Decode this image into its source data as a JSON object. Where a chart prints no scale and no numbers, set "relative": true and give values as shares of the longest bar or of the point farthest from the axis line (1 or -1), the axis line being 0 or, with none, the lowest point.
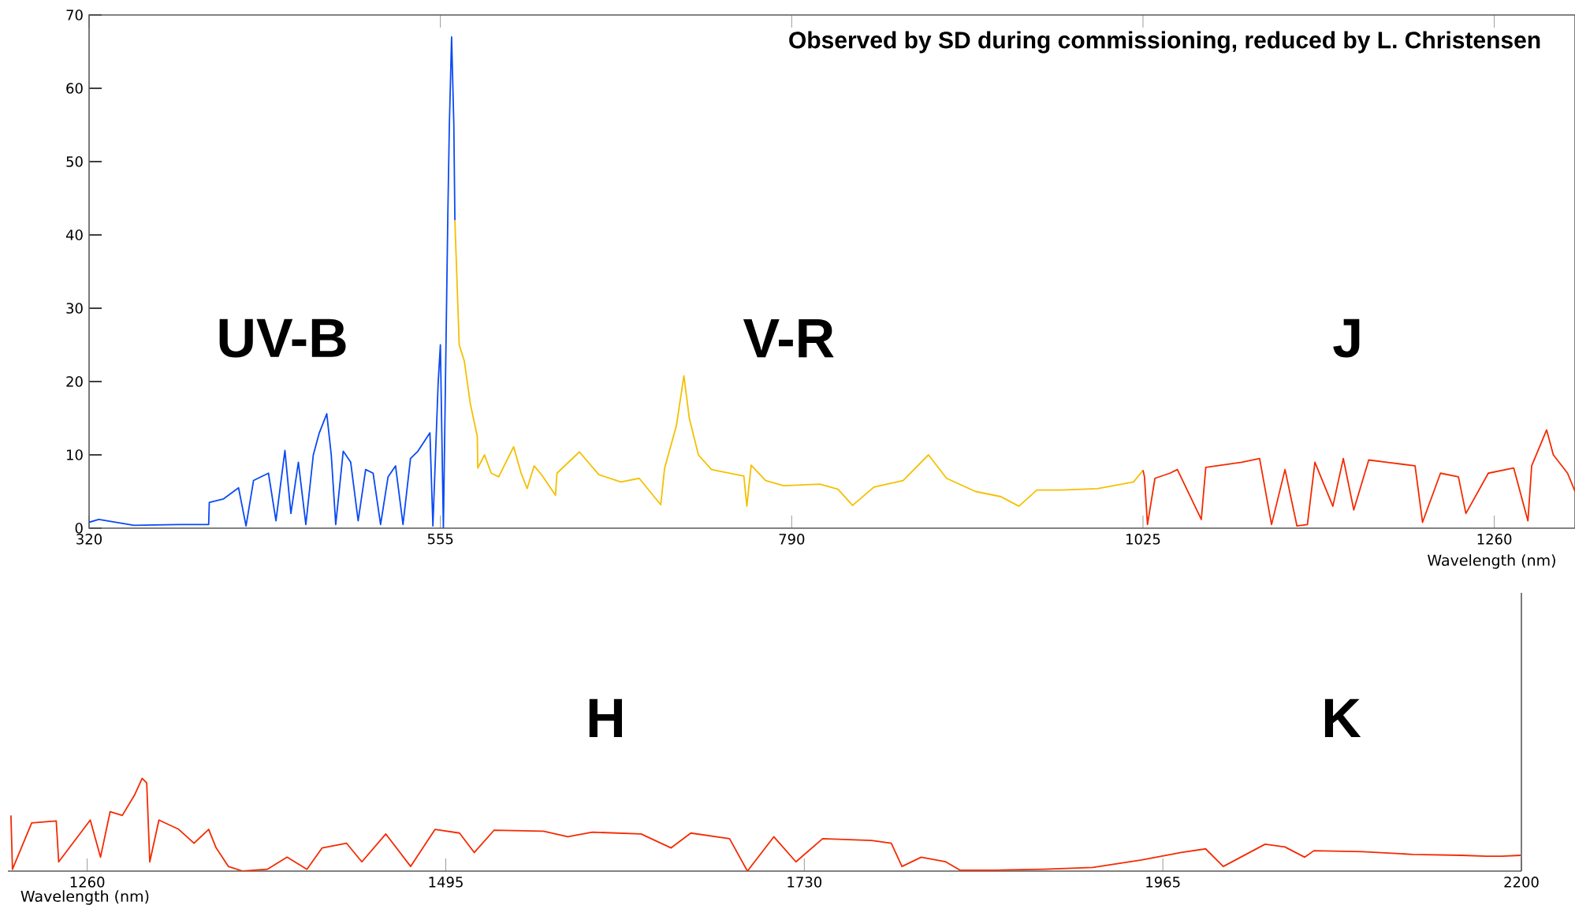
{
  "chart_data": [
    {
      "type": "line",
      "xlabel": "Wavelength (nm)",
      "xlim": [
        320,
        1314
      ],
      "xticks": [
        320,
        555,
        790,
        1025,
        1260
      ],
      "ylim": [
        0,
        70
      ],
      "yticks": [
        0,
        10,
        20,
        30,
        40,
        50,
        60,
        70
      ],
      "annotations": [
        "Observed by SD during commissioning, reduced by L. Christensen",
        "UV-B",
        "V-R",
        "J"
      ],
      "series": [
        {
          "color": "#0a4af5",
          "x": [
            320,
            326.5,
            350,
            380,
            400,
            400.4,
            410,
            420,
            425,
            430,
            440,
            445,
            451,
            455,
            460,
            465,
            470,
            474,
            479,
            482,
            485,
            490,
            495,
            500,
            505,
            510,
            515,
            520,
            525,
            530,
            535,
            540,
            548,
            550,
            553.5,
            555,
            557,
            560,
            561,
            562.5,
            564,
            564.7
          ],
          "values": [
            0.8,
            1.2,
            0.4,
            0.5,
            0.5,
            3.5,
            4,
            5.5,
            0.3,
            6.5,
            7.5,
            1,
            10.6,
            2,
            9,
            0.5,
            10,
            13,
            15.6,
            10,
            0.5,
            10.5,
            9,
            1,
            8,
            7.5,
            0.5,
            7,
            8.5,
            0.5,
            9.5,
            10.5,
            13,
            0.3,
            19.8,
            25,
            0,
            43,
            55,
            67,
            55,
            42
          ]
        },
        {
          "color": "#f5c000",
          "x": [
            564.7,
            567.6,
            571,
            575,
            579.7,
            580,
            584.5,
            589,
            594,
            604,
            609,
            613,
            617.7,
            623,
            632,
            633,
            648,
            661,
            675.8,
            688,
            702.4,
            705,
            712.9,
            717.9,
            721.5,
            727.6,
            736.3,
            758,
            760,
            762.9,
            772.6,
            784.7,
            808.9,
            821,
            830.7,
            845,
            864.5,
            881.5,
            893.6,
            913,
            930,
            942,
            954,
            970,
            994.5,
            1018.7,
            1025
          ],
          "values": [
            42,
            25,
            22.8,
            17,
            12.5,
            8.2,
            10,
            7.5,
            7,
            11.1,
            7.5,
            5.4,
            8.5,
            7.2,
            4.5,
            7.5,
            10.4,
            7.3,
            6.3,
            6.8,
            3.2,
            8.2,
            14,
            20.8,
            15,
            10,
            8,
            7.1,
            3,
            8.6,
            6.5,
            5.8,
            6,
            5.3,
            3.1,
            5.6,
            6.5,
            10,
            6.8,
            5,
            4.3,
            3,
            5.2,
            5.2,
            5.4,
            6.3,
            7.9
          ]
        },
        {
          "color": "#f52a00",
          "x": [
            1025,
            1026,
            1028,
            1033,
            1043,
            1048,
            1064,
            1067,
            1091,
            1103,
            1111,
            1120,
            1128,
            1135,
            1140,
            1152,
            1159,
            1166,
            1176,
            1188,
            1207,
            1212,
            1224,
            1236,
            1241,
            1256,
            1273,
            1282.5,
            1285,
            1295,
            1299.5,
            1309,
            1314
          ],
          "values": [
            7.9,
            7,
            0.5,
            6.8,
            7.5,
            8,
            1.2,
            8.3,
            9,
            9.5,
            0.5,
            8,
            0.3,
            0.5,
            9,
            3,
            9.5,
            2.5,
            9.3,
            9,
            8.5,
            0.8,
            7.5,
            7,
            2,
            7.5,
            8.2,
            1,
            8.5,
            13.4,
            10,
            7.5,
            5
          ]
        }
      ]
    },
    {
      "type": "line",
      "relative": true,
      "xlabel": "Wavelength (nm)",
      "xlim": [
        1208,
        2200
      ],
      "xticks": [
        1260,
        1495,
        1730,
        1965,
        2200
      ],
      "annotations": [
        "H",
        "K"
      ],
      "series": [
        {
          "color": "#f52a00",
          "x": [
            1210,
            1211,
            1223.6,
            1239.7,
            1241.3,
            1262,
            1268.7,
            1275,
            1283,
            1291,
            1296,
            1299,
            1301,
            1307,
            1320,
            1330,
            1339.6,
            1344.5,
            1352.5,
            1362,
            1378,
            1391,
            1404,
            1414,
            1430,
            1440,
            1455.7,
            1472,
            1488,
            1504,
            1513.7,
            1526.6,
            1559,
            1575,
            1591,
            1623,
            1642.7,
            1655.6,
            1681,
            1692.7,
            1710,
            1724.5,
            1742,
            1774,
            1787,
            1794,
            1806.6,
            1822.7,
            1832,
            1855,
            1887,
            1919,
            1951,
            1977,
            1993,
            2004.6,
            2016,
            2032,
            2045,
            2058,
            2064,
            2096,
            2129,
            2161,
            2177,
            2187,
            2199.5
          ],
          "values": [
            0.6,
            0.02,
            0.52,
            0.54,
            0.1,
            0.55,
            0.15,
            0.64,
            0.6,
            0.82,
            1,
            0.95,
            0.1,
            0.55,
            0.45,
            0.3,
            0.45,
            0.25,
            0.05,
            0,
            0.02,
            0.15,
            0.02,
            0.25,
            0.3,
            0.1,
            0.4,
            0.05,
            0.45,
            0.41,
            0.2,
            0.44,
            0.43,
            0.37,
            0.42,
            0.4,
            0.25,
            0.41,
            0.35,
            0,
            0.37,
            0.1,
            0.35,
            0.33,
            0.3,
            0.05,
            0.15,
            0.1,
            0.01,
            0.01,
            0.02,
            0.04,
            0.12,
            0.2,
            0.24,
            0.05,
            0.15,
            0.29,
            0.26,
            0.15,
            0.22,
            0.21,
            0.18,
            0.17,
            0.16,
            0.16,
            0.17
          ]
        }
      ]
    }
  ]
}
